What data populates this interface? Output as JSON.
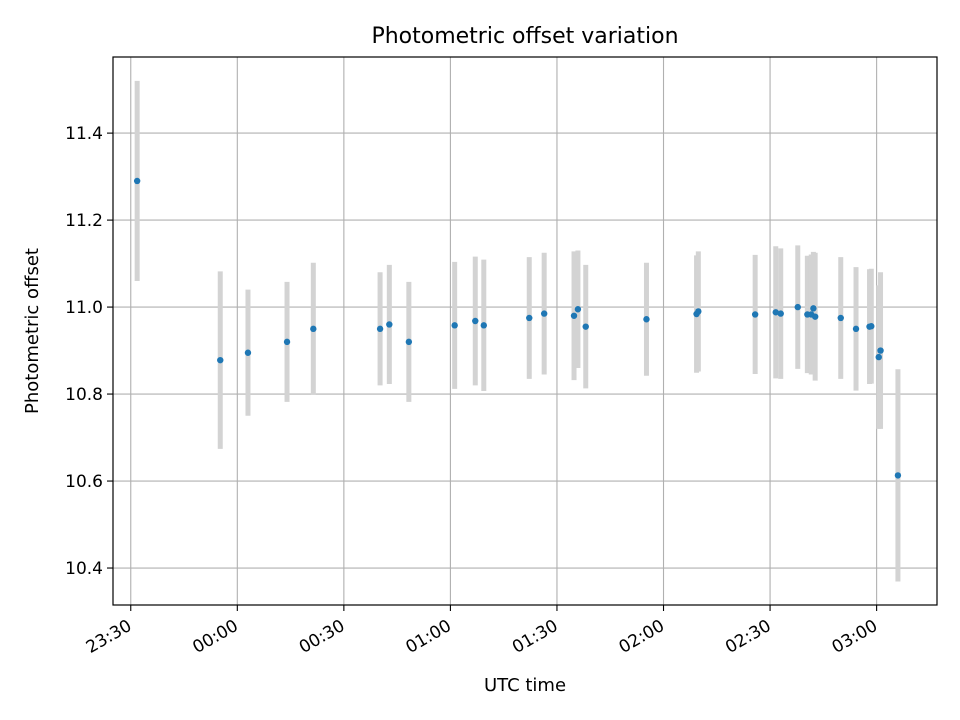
{
  "chart_data": {
    "type": "scatter",
    "title": "Photometric offset variation",
    "xlabel": "UTC time",
    "ylabel": "Photometric offset",
    "xlim": [
      "23:25",
      "03:17"
    ],
    "ylim": [
      10.315,
      11.575
    ],
    "x_ticks": [
      "23:30",
      "00:00",
      "00:30",
      "01:00",
      "01:30",
      "02:00",
      "02:30",
      "03:00"
    ],
    "y_ticks": [
      10.4,
      10.6,
      10.8,
      11.0,
      11.2,
      11.4
    ],
    "grid": true,
    "colors": {
      "points": "#1f77b4",
      "error_bars": "#d3d3d3",
      "grid": "#b0b0b0"
    },
    "points": [
      {
        "time": "23:31.8",
        "y": 11.29,
        "yerr": 0.23
      },
      {
        "time": "23:55.2",
        "y": 10.878,
        "yerr": 0.204
      },
      {
        "time": "00:03.0",
        "y": 10.895,
        "yerr": 0.145
      },
      {
        "time": "00:14.0",
        "y": 10.92,
        "yerr": 0.138
      },
      {
        "time": "00:21.4",
        "y": 10.95,
        "yerr": 0.152
      },
      {
        "time": "00:40.2",
        "y": 10.95,
        "yerr": 0.13
      },
      {
        "time": "00:42.8",
        "y": 10.96,
        "yerr": 0.137
      },
      {
        "time": "00:48.3",
        "y": 10.92,
        "yerr": 0.138
      },
      {
        "time": "01:01.2",
        "y": 10.958,
        "yerr": 0.146
      },
      {
        "time": "01:07.0",
        "y": 10.968,
        "yerr": 0.148
      },
      {
        "time": "01:09.4",
        "y": 10.958,
        "yerr": 0.151
      },
      {
        "time": "01:22.2",
        "y": 10.975,
        "yerr": 0.14
      },
      {
        "time": "01:26.4",
        "y": 10.985,
        "yerr": 0.14
      },
      {
        "time": "01:34.8",
        "y": 10.98,
        "yerr": 0.148
      },
      {
        "time": "01:35.9",
        "y": 10.995,
        "yerr": 0.135
      },
      {
        "time": "01:38.1",
        "y": 10.955,
        "yerr": 0.142
      },
      {
        "time": "01:55.2",
        "y": 10.972,
        "yerr": 0.13
      },
      {
        "time": "02:09.3",
        "y": 10.984,
        "yerr": 0.135
      },
      {
        "time": "02:09.8",
        "y": 10.99,
        "yerr": 0.138
      },
      {
        "time": "02:25.8",
        "y": 10.983,
        "yerr": 0.137
      },
      {
        "time": "02:31.6",
        "y": 10.988,
        "yerr": 0.152
      },
      {
        "time": "02:33.0",
        "y": 10.985,
        "yerr": 0.15
      },
      {
        "time": "02:37.8",
        "y": 11.0,
        "yerr": 0.142
      },
      {
        "time": "02:40.5",
        "y": 10.983,
        "yerr": 0.135
      },
      {
        "time": "02:41.6",
        "y": 10.983,
        "yerr": 0.138
      },
      {
        "time": "02:42.2",
        "y": 10.997,
        "yerr": 0.13
      },
      {
        "time": "02:42.7",
        "y": 10.978,
        "yerr": 0.147
      },
      {
        "time": "02:49.9",
        "y": 10.975,
        "yerr": 0.14
      },
      {
        "time": "02:54.2",
        "y": 10.95,
        "yerr": 0.142
      },
      {
        "time": "02:58.0",
        "y": 10.955,
        "yerr": 0.132
      },
      {
        "time": "02:58.5",
        "y": 10.956,
        "yerr": 0.132
      },
      {
        "time": "03:00.6",
        "y": 10.885,
        "yerr": 0.165
      },
      {
        "time": "03:01.1",
        "y": 10.9,
        "yerr": 0.18
      },
      {
        "time": "03:06.0",
        "y": 10.613,
        "yerr": 0.244
      }
    ]
  }
}
